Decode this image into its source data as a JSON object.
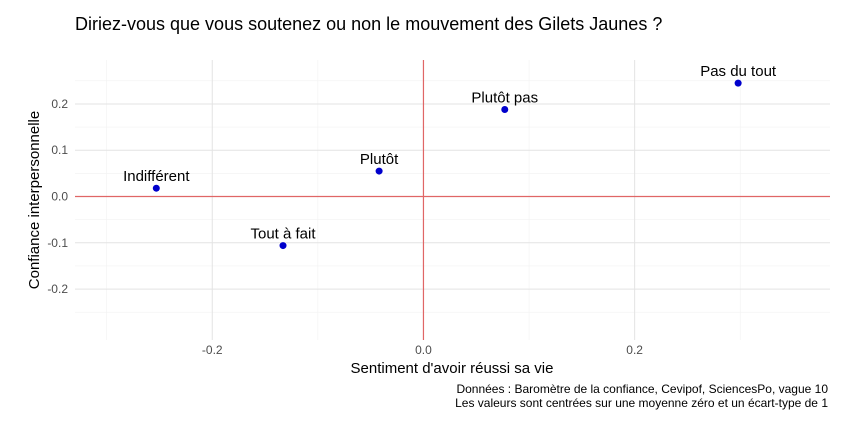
{
  "chart_data": {
    "type": "scatter",
    "title": "Diriez-vous que vous soutenez ou non le mouvement des Gilets Jaunes ?",
    "xlabel": "Sentiment d'avoir réussi sa vie",
    "ylabel": "Confiance interpersonnelle",
    "xlim": [
      -0.33,
      0.385
    ],
    "ylim": [
      -0.31,
      0.295
    ],
    "x_ticks": [
      -0.2,
      0.0,
      0.2
    ],
    "x_tick_labels": [
      "-0.2",
      "0.0",
      "0.2"
    ],
    "y_ticks": [
      -0.2,
      -0.1,
      0.0,
      0.1,
      0.2
    ],
    "y_tick_labels": [
      "-0.2",
      "-0.1",
      "0.0",
      "0.1",
      "0.2"
    ],
    "grid": true,
    "reference_lines": {
      "x": 0,
      "y": 0,
      "color": "#e06666"
    },
    "point_color": "#0000cc",
    "points": [
      {
        "label": "Indifférent",
        "x": -0.253,
        "y": 0.018
      },
      {
        "label": "Tout à fait",
        "x": -0.133,
        "y": -0.106
      },
      {
        "label": "Plutôt",
        "x": -0.042,
        "y": 0.055
      },
      {
        "label": "Plutôt pas",
        "x": 0.077,
        "y": 0.188
      },
      {
        "label": "Pas du tout",
        "x": 0.298,
        "y": 0.245
      }
    ],
    "caption": [
      "Données : Baromètre de la confiance, Cevipof, SciencesPo, vague 10",
      "Les valeurs sont centrées sur une moyenne zéro et un écart-type de 1"
    ]
  }
}
